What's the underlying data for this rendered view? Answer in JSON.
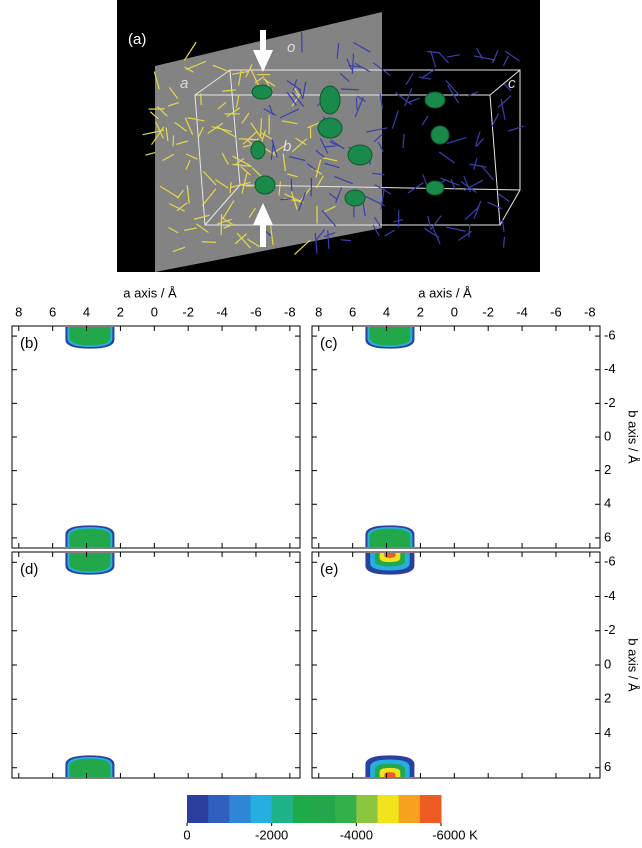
{
  "panel_a": {
    "label": "(a)",
    "axis_labels": [
      "a",
      "o",
      "b",
      "c"
    ]
  },
  "panels": [
    {
      "label": "(b)"
    },
    {
      "label": "(c)"
    },
    {
      "label": "(d)"
    },
    {
      "label": "(e)"
    }
  ],
  "x_axis": {
    "label": "a axis / Å",
    "lim": [
      8.4,
      -8.6
    ],
    "ticks": [
      8,
      6,
      4,
      2,
      0,
      -2,
      -4,
      -6,
      -8
    ]
  },
  "y_axis": {
    "label": "b axis / Å",
    "lim": [
      -6.6,
      6.6
    ],
    "ticks": [
      -6,
      -4,
      -2,
      0,
      2,
      4,
      6
    ]
  },
  "colorbar": {
    "lim": [
      0,
      -6000
    ],
    "colors": [
      "#2b3f9e",
      "#2f5fbf",
      "#2f86d6",
      "#25aee0",
      "#1fb38a",
      "#1faa4a",
      "#22a84a",
      "#33b04a",
      "#8cc63f",
      "#f2e41c",
      "#f6a21e",
      "#ee5b24"
    ],
    "ticks": [
      0,
      -2000,
      -4000,
      {
        "value": -6000,
        "label": "-6000 K"
      }
    ]
  }
}
